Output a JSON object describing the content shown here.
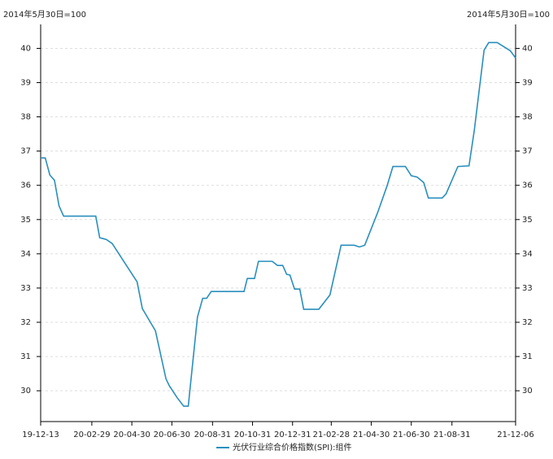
{
  "chart_data": {
    "type": "line",
    "y_label": "2014年5月30日=100",
    "y2_label": "2014年5月30日=100",
    "x": [
      "19-12-13",
      "19-12-20",
      "19-12-27",
      "20-01-03",
      "20-01-10",
      "20-01-17",
      "20-03-06",
      "20-03-12",
      "20-03-22",
      "20-03-31",
      "20-05-08",
      "20-05-16",
      "20-06-05",
      "20-06-21",
      "20-06-26",
      "20-07-08",
      "20-07-18",
      "20-07-25",
      "20-08-08",
      "20-08-16",
      "20-08-22",
      "20-08-29",
      "20-10-18",
      "20-10-23",
      "20-11-03",
      "20-11-09",
      "20-11-30",
      "20-12-08",
      "20-12-16",
      "20-12-22",
      "20-12-27",
      "21-01-03",
      "21-01-11",
      "21-01-17",
      "21-02-09",
      "21-02-26",
      "21-03-15",
      "21-04-04",
      "21-04-12",
      "21-04-20",
      "21-05-10",
      "21-05-24",
      "21-06-02",
      "21-06-21",
      "21-06-30",
      "21-07-09",
      "21-07-19",
      "21-07-26",
      "21-08-16",
      "21-08-22",
      "21-08-31",
      "21-09-09",
      "21-09-26",
      "21-10-04",
      "21-10-19",
      "21-10-26",
      "21-11-08",
      "21-11-28",
      "21-12-06"
    ],
    "series": [
      {
        "name": "光伏行业综合价格指数(SPI):组件",
        "color": "#2a8fbd",
        "values": [
          36.8,
          36.8,
          36.3,
          36.15,
          35.4,
          35.1,
          35.1,
          34.47,
          34.42,
          34.3,
          33.18,
          32.4,
          31.75,
          30.35,
          30.15,
          29.8,
          29.55,
          29.55,
          32.15,
          32.7,
          32.7,
          32.9,
          32.9,
          33.28,
          33.28,
          33.78,
          33.78,
          33.66,
          33.66,
          33.4,
          33.38,
          32.97,
          32.97,
          32.38,
          32.38,
          32.8,
          34.25,
          34.25,
          34.2,
          34.25,
          35.22,
          35.98,
          36.55,
          36.55,
          36.28,
          36.24,
          36.08,
          35.63,
          35.63,
          35.75,
          36.15,
          36.55,
          36.57,
          37.6,
          39.95,
          40.17,
          40.17,
          39.93,
          39.72
        ]
      }
    ],
    "xlim": [
      "19-12-13",
      "21-12-06"
    ],
    "xticks": [
      "19-12-13",
      "20-02-29",
      "20-04-30",
      "20-06-30",
      "20-08-31",
      "20-10-31",
      "20-12-31",
      "21-02-28",
      "21-04-30",
      "21-06-30",
      "21-08-31",
      "21-12-06"
    ],
    "ylim": [
      29.1,
      40.7
    ],
    "yticks": [
      30,
      31,
      32,
      33,
      34,
      35,
      36,
      37,
      38,
      39,
      40
    ],
    "y2lim": [
      29.1,
      40.7
    ],
    "y2ticks": [
      30,
      31,
      32,
      33,
      34,
      35,
      36,
      37,
      38,
      39,
      40
    ],
    "grid": true
  }
}
